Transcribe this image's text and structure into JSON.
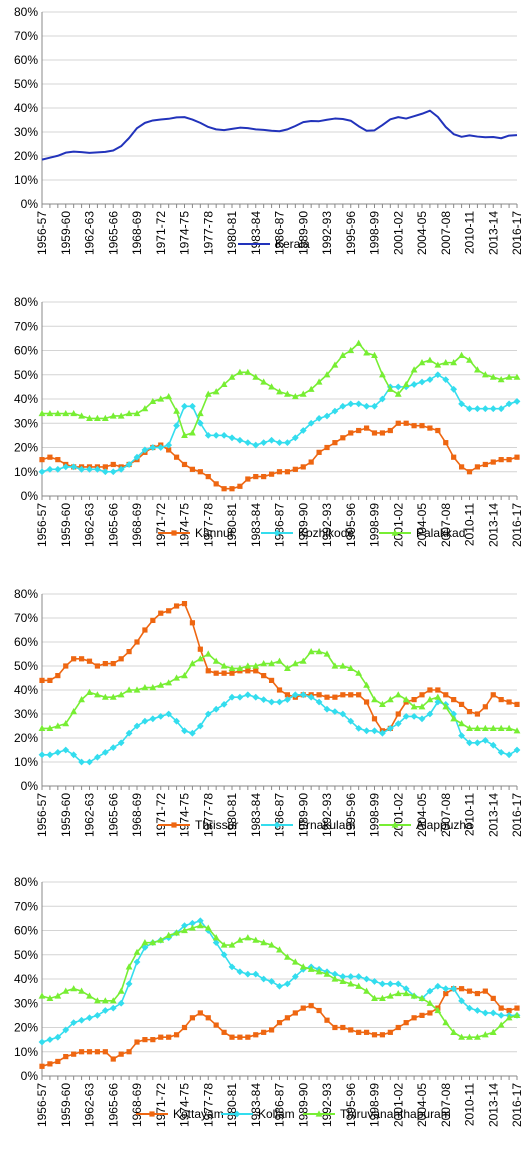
{
  "categories": [
    "1956-57",
    "1957-58",
    "1958-59",
    "1959-60",
    "1960-61",
    "1961-62",
    "1962-63",
    "1963-64",
    "1964-65",
    "1965-66",
    "1966-67",
    "1967-68",
    "1968-69",
    "1969-70",
    "1970-71",
    "1971-72",
    "1972-73",
    "1973-74",
    "1974-75",
    "1975-76",
    "1976-77",
    "1977-78",
    "1978-79",
    "1979-80",
    "1980-81",
    "1981-82",
    "1982-83",
    "1983-84",
    "1984-85",
    "1985-86",
    "1986-87",
    "1987-88",
    "1988-89",
    "1989-90",
    "1990-91",
    "1991-92",
    "1992-93",
    "1993-94",
    "1994-95",
    "1995-96",
    "1996-97",
    "1997-98",
    "1998-99",
    "1999-00",
    "2000-01",
    "2001-02",
    "2002-03",
    "2003-04",
    "2004-05",
    "2005-06",
    "2006-07",
    "2007-08",
    "2008-09",
    "2009-10",
    "2010-11",
    "2011-12",
    "2012-13",
    "2013-14",
    "2014-15",
    "2015-16",
    "2016-17"
  ],
  "chart_data": [
    {
      "type": "line",
      "x_tick_labels": [
        "1956-57",
        "1959-60",
        "1962-63",
        "1965-66",
        "1968-69",
        "1971-72",
        "1974-75",
        "1977-78",
        "1980-81",
        "1983-84",
        "1986-87",
        "1989-90",
        "1992-93",
        "1995-96",
        "1998-99",
        "2001-02",
        "2004-05",
        "2007-08",
        "2010-11",
        "2013-14",
        "2016-17"
      ],
      "y_ticks": [
        "0%",
        "10%",
        "20%",
        "30%",
        "40%",
        "50%",
        "60%",
        "70%",
        "80%"
      ],
      "ylim": [
        0,
        80
      ],
      "grid": true,
      "legend": "bottom",
      "series": [
        {
          "name": "Kerala",
          "color": "#2233bb",
          "marker": "none",
          "values": [
            18.5,
            19.3,
            20.1,
            21.4,
            21.8,
            21.6,
            21.3,
            21.5,
            21.7,
            22.3,
            24.1,
            27.5,
            31.6,
            33.8,
            34.8,
            35.2,
            35.5,
            36.1,
            36.2,
            35.2,
            33.8,
            32.1,
            31.1,
            30.8,
            31.3,
            31.8,
            31.6,
            31.1,
            30.9,
            30.5,
            30.3,
            31.1,
            32.5,
            34.1,
            34.6,
            34.5,
            35.1,
            35.6,
            35.4,
            34.7,
            32.4,
            30.5,
            30.7,
            32.9,
            35.3,
            36.2,
            35.6,
            36.6,
            37.6,
            38.9,
            36.3,
            32.1,
            29.1,
            28.0,
            28.6,
            28.1,
            27.8,
            27.9,
            27.4,
            28.5,
            28.7
          ]
        }
      ]
    },
    {
      "type": "line",
      "x_tick_labels": [
        "1956-57",
        "1959-60",
        "1962-63",
        "1965-66",
        "1968-69",
        "1971-72",
        "1974-75",
        "1977-78",
        "1980-81",
        "1983-84",
        "1986-87",
        "1989-90",
        "1992-93",
        "1995-96",
        "1998-99",
        "2001-02",
        "2004-05",
        "2007-08",
        "2010-11",
        "2013-14",
        "2016-17"
      ],
      "y_ticks": [
        "0%",
        "10%",
        "20%",
        "30%",
        "40%",
        "50%",
        "60%",
        "70%",
        "80%"
      ],
      "ylim": [
        0,
        80
      ],
      "grid": true,
      "legend": "bottom",
      "series": [
        {
          "name": "Kannur",
          "color": "#ee6611",
          "marker": "square",
          "values": [
            15,
            16,
            15,
            13,
            12,
            12,
            12,
            12,
            12,
            13,
            12,
            13,
            15,
            18,
            20,
            21,
            19,
            16,
            13,
            11,
            10,
            8,
            5,
            3,
            3,
            4,
            7,
            8,
            8,
            9,
            10,
            10,
            11,
            12,
            14,
            18,
            20,
            22,
            24,
            26,
            27,
            28,
            26,
            26,
            27,
            30,
            30,
            29,
            29,
            28,
            27,
            22,
            16,
            12,
            10,
            12,
            13,
            14,
            15,
            15,
            16
          ]
        },
        {
          "name": "Kozhikode",
          "color": "#33ddee",
          "marker": "diamond",
          "values": [
            10,
            11,
            11,
            12,
            12,
            11,
            11,
            11,
            10,
            10,
            11,
            13,
            16,
            19,
            20,
            20,
            21,
            29,
            37,
            37,
            30,
            25,
            25,
            25,
            24,
            23,
            22,
            21,
            22,
            23,
            22,
            22,
            24,
            27,
            30,
            32,
            33,
            35,
            37,
            38,
            38,
            37,
            37,
            40,
            45,
            45,
            45,
            46,
            47,
            48,
            50,
            48,
            44,
            38,
            36,
            36,
            36,
            36,
            36,
            38,
            39
          ]
        },
        {
          "name": "Palakkad",
          "color": "#77ee33",
          "marker": "triangle",
          "values": [
            34,
            34,
            34,
            34,
            34,
            33,
            32,
            32,
            32,
            33,
            33,
            34,
            34,
            36,
            39,
            40,
            41,
            35,
            25,
            26,
            34,
            42,
            43,
            46,
            49,
            51,
            51,
            49,
            47,
            45,
            43,
            42,
            41,
            42,
            44,
            47,
            50,
            54,
            58,
            60,
            63,
            59,
            58,
            50,
            44,
            42,
            46,
            52,
            55,
            56,
            54,
            55,
            55,
            58,
            56,
            52,
            50,
            49,
            48,
            49,
            49
          ]
        }
      ]
    },
    {
      "type": "line",
      "x_tick_labels": [
        "1956-57",
        "1959-60",
        "1962-63",
        "1965-66",
        "1968-69",
        "1971-72",
        "1974-75",
        "1977-78",
        "1980-81",
        "1983-84",
        "1986-87",
        "1989-90",
        "1992-93",
        "1995-96",
        "1998-99",
        "2001-02",
        "2004-05",
        "2007-08",
        "2010-11",
        "2013-14",
        "2016-17"
      ],
      "y_ticks": [
        "0%",
        "10%",
        "20%",
        "30%",
        "40%",
        "50%",
        "60%",
        "70%",
        "80%"
      ],
      "ylim": [
        0,
        80
      ],
      "grid": true,
      "legend": "bottom",
      "series": [
        {
          "name": "Thrissur",
          "color": "#ee6611",
          "marker": "square",
          "values": [
            44,
            44,
            46,
            50,
            53,
            53,
            52,
            50,
            51,
            51,
            53,
            56,
            60,
            65,
            69,
            72,
            73,
            75,
            76,
            68,
            57,
            48,
            47,
            47,
            47,
            48,
            48,
            48,
            46,
            44,
            40,
            38,
            37,
            38,
            38,
            38,
            37,
            37,
            38,
            38,
            38,
            35,
            28,
            23,
            24,
            30,
            35,
            36,
            38,
            40,
            40,
            38,
            36,
            34,
            31,
            30,
            33,
            38,
            36,
            35,
            34
          ]
        },
        {
          "name": "Ernakulam",
          "color": "#33ddee",
          "marker": "diamond",
          "values": [
            13,
            13,
            14,
            15,
            13,
            10,
            10,
            12,
            14,
            16,
            18,
            22,
            25,
            27,
            28,
            29,
            30,
            27,
            23,
            22,
            25,
            30,
            32,
            34,
            37,
            37,
            38,
            37,
            36,
            35,
            35,
            36,
            38,
            38,
            37,
            35,
            32,
            31,
            30,
            27,
            24,
            23,
            23,
            22,
            24,
            26,
            29,
            29,
            28,
            30,
            35,
            34,
            30,
            21,
            18,
            18,
            19,
            17,
            14,
            13,
            15
          ]
        },
        {
          "name": "Alappuzha",
          "color": "#77ee33",
          "marker": "triangle",
          "values": [
            24,
            24,
            25,
            26,
            31,
            36,
            39,
            38,
            37,
            37,
            38,
            40,
            40,
            41,
            41,
            42,
            43,
            45,
            46,
            51,
            53,
            55,
            52,
            50,
            49,
            49,
            50,
            50,
            51,
            51,
            52,
            49,
            51,
            52,
            56,
            56,
            55,
            50,
            50,
            49,
            47,
            42,
            36,
            34,
            36,
            38,
            36,
            33,
            33,
            36,
            37,
            33,
            28,
            26,
            24,
            24,
            24,
            24,
            24,
            24,
            23
          ]
        }
      ]
    },
    {
      "type": "line",
      "x_tick_labels": [
        "1956-57",
        "1959-60",
        "1962-63",
        "1965-66",
        "1968-69",
        "1971-72",
        "1974-75",
        "1977-78",
        "1980-81",
        "1983-84",
        "1986-87",
        "1989-90",
        "1992-93",
        "1995-96",
        "1998-99",
        "2001-02",
        "2004-05",
        "2007-08",
        "2010-11",
        "2013-14",
        "2016-17"
      ],
      "y_ticks": [
        "0%",
        "10%",
        "20%",
        "30%",
        "40%",
        "50%",
        "60%",
        "70%",
        "80%"
      ],
      "ylim": [
        0,
        80
      ],
      "grid": true,
      "legend": "bottom",
      "series": [
        {
          "name": "Kottayam",
          "color": "#ee6611",
          "marker": "square",
          "values": [
            4,
            5,
            6,
            8,
            9,
            10,
            10,
            10,
            10,
            7,
            9,
            10,
            14,
            15,
            15,
            16,
            16,
            17,
            20,
            24,
            26,
            24,
            21,
            18,
            16,
            16,
            16,
            17,
            18,
            19,
            22,
            24,
            26,
            28,
            29,
            27,
            23,
            20,
            20,
            19,
            18,
            18,
            17,
            17,
            18,
            20,
            22,
            24,
            25,
            26,
            28,
            34,
            36,
            36,
            35,
            34,
            35,
            32,
            28,
            27,
            28
          ]
        },
        {
          "name": "Kollam",
          "color": "#33ddee",
          "marker": "diamond",
          "values": [
            14,
            15,
            16,
            19,
            22,
            23,
            24,
            25,
            27,
            28,
            30,
            38,
            47,
            53,
            55,
            56,
            57,
            59,
            62,
            63,
            64,
            60,
            55,
            50,
            45,
            43,
            42,
            42,
            40,
            39,
            37,
            38,
            41,
            44,
            45,
            44,
            43,
            42,
            41,
            41,
            41,
            40,
            39,
            38,
            38,
            38,
            36,
            33,
            32,
            35,
            37,
            36,
            36,
            31,
            28,
            27,
            26,
            26,
            25,
            25,
            25
          ]
        },
        {
          "name": "Thiruvananthapuram",
          "color": "#77ee33",
          "marker": "triangle",
          "values": [
            33,
            32,
            33,
            35,
            36,
            35,
            33,
            31,
            31,
            31,
            35,
            45,
            51,
            55,
            55,
            56,
            58,
            59,
            60,
            61,
            62,
            61,
            57,
            54,
            54,
            56,
            57,
            56,
            55,
            54,
            52,
            49,
            47,
            45,
            44,
            43,
            42,
            40,
            39,
            38,
            37,
            35,
            32,
            32,
            33,
            34,
            34,
            33,
            32,
            30,
            27,
            22,
            18,
            16,
            16,
            16,
            17,
            18,
            21,
            24,
            25
          ]
        }
      ]
    }
  ]
}
